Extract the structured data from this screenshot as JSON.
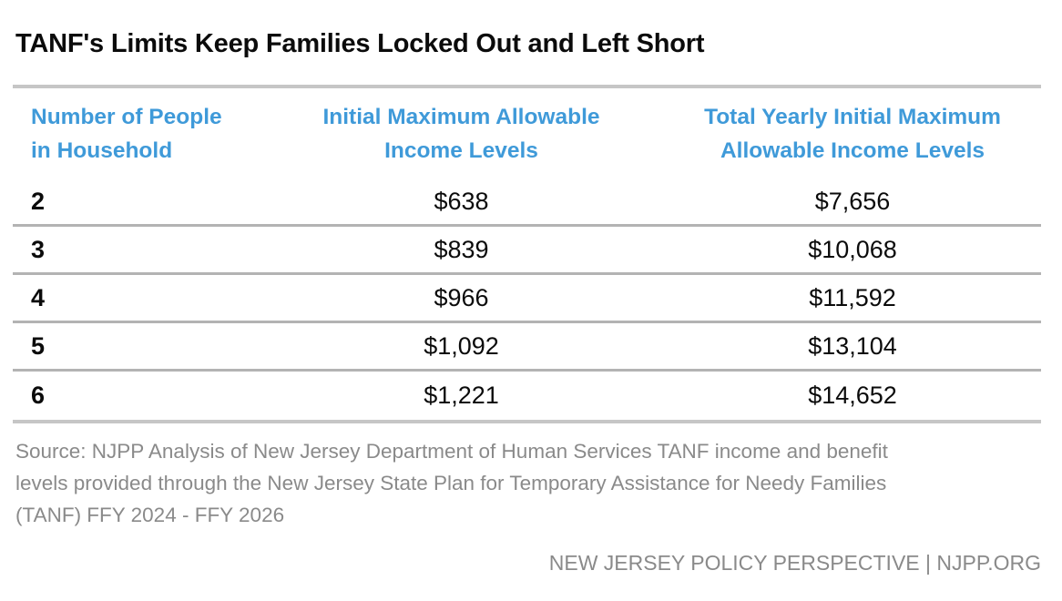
{
  "title": "TANF's Limits Keep Families Locked Out and Left Short",
  "colors": {
    "header_blue": "#3f9ad9",
    "text_black": "#0b0b0b",
    "muted_gray": "#8a8a8a",
    "thick_rule_gray": "#c6c6c6",
    "row_divider_gray": "#b3b3b3"
  },
  "table": {
    "headers": [
      {
        "lines": [
          "Number of People",
          "in Household"
        ]
      },
      {
        "lines": [
          "Initial Maximum Allowable",
          "Income Levels"
        ]
      },
      {
        "lines": [
          "Total Yearly Initial Maximum",
          "Allowable Income Levels"
        ]
      }
    ],
    "rows": [
      {
        "household": "2",
        "monthly": "$638",
        "yearly": "$7,656"
      },
      {
        "household": "3",
        "monthly": "$839",
        "yearly": "$10,068"
      },
      {
        "household": "4",
        "monthly": "$966",
        "yearly": "$11,592"
      },
      {
        "household": "5",
        "monthly": "$1,092",
        "yearly": "$13,104"
      },
      {
        "household": "6",
        "monthly": "$1,221",
        "yearly": "$14,652"
      }
    ]
  },
  "chart_data": {
    "type": "table",
    "title": "TANF's Limits Keep Families Locked Out and Left Short",
    "columns": [
      "Number of People in Household",
      "Initial Maximum Allowable Income Levels",
      "Total Yearly Initial Maximum Allowable Income Levels"
    ],
    "rows": [
      [
        2,
        638,
        7656
      ],
      [
        3,
        839,
        10068
      ],
      [
        4,
        966,
        11592
      ],
      [
        5,
        1092,
        13104
      ],
      [
        6,
        1221,
        14652
      ]
    ]
  },
  "source_lines": [
    "Source: NJPP Analysis of New Jersey Department of Human Services TANF income and benefit",
    "levels provided through the New Jersey State Plan for Temporary Assistance for Needy Families",
    "(TANF) FFY 2024 - FFY 2026"
  ],
  "footer": "NEW JERSEY POLICY PERSPECTIVE | NJPP.ORG"
}
